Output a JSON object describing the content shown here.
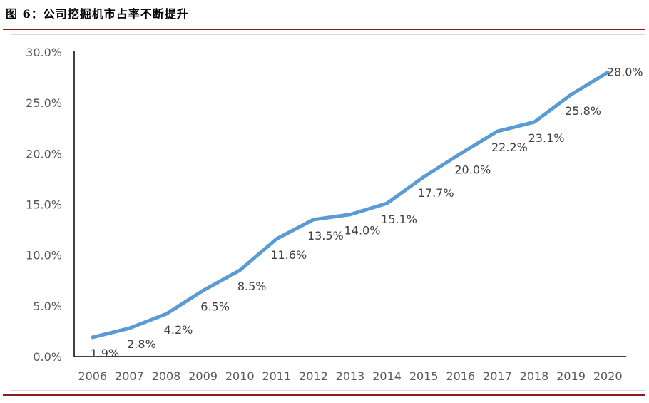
{
  "figure": {
    "title": "图 6：公司挖掘机市占率不断提升"
  },
  "colors": {
    "line": "#5b9bd5",
    "rule": "#8b1a1a",
    "axis": "#000000"
  },
  "chart_data": {
    "type": "line",
    "title": "",
    "xlabel": "",
    "ylabel": "",
    "categories": [
      "2006",
      "2007",
      "2008",
      "2009",
      "2010",
      "2011",
      "2012",
      "2013",
      "2014",
      "2015",
      "2016",
      "2017",
      "2018",
      "2019",
      "2020"
    ],
    "series": [
      {
        "values": [
          1.9,
          2.8,
          4.2,
          6.5,
          8.5,
          11.6,
          13.5,
          14.0,
          15.1,
          17.7,
          20.0,
          22.2,
          23.1,
          25.8,
          28.0
        ]
      }
    ],
    "data_labels": [
      "1.9%",
      "2.8%",
      "4.2%",
      "6.5%",
      "8.5%",
      "11.6%",
      "13.5%",
      "14.0%",
      "15.1%",
      "17.7%",
      "20.0%",
      "22.2%",
      "23.1%",
      "25.8%",
      "28.0%"
    ],
    "ylim": [
      0,
      30
    ],
    "yticks": [
      0,
      5,
      10,
      15,
      20,
      25,
      30
    ],
    "ytick_labels": [
      "0.0%",
      "5.0%",
      "10.0%",
      "15.0%",
      "20.0%",
      "25.0%",
      "30.0%"
    ],
    "grid": false,
    "legend": "none"
  }
}
